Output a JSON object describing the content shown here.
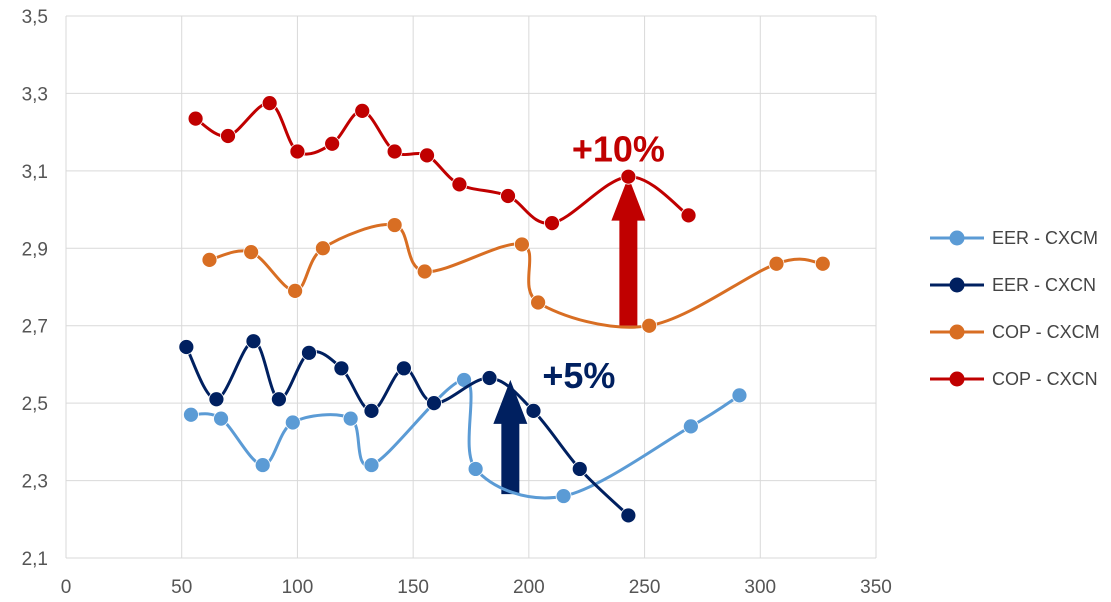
{
  "chart_data": {
    "type": "scatter",
    "xlim": [
      0,
      350
    ],
    "ylim": [
      2.1,
      3.5
    ],
    "x_ticks": [
      0,
      50,
      100,
      150,
      200,
      250,
      300,
      350
    ],
    "y_ticks": [
      2.1,
      2.3,
      2.5,
      2.7,
      2.9,
      3.1,
      3.3,
      3.5
    ],
    "x_tick_labels": [
      "0",
      "50",
      "100",
      "150",
      "200",
      "250",
      "300",
      "350"
    ],
    "y_tick_labels": [
      "2,1",
      "2,3",
      "2,5",
      "2,7",
      "2,9",
      "3,1",
      "3,3",
      "3,5"
    ],
    "grid": true,
    "legend_position": "right",
    "series": [
      {
        "name": "EER - CXCM",
        "color": "#5b9bd5",
        "x": [
          54,
          67,
          85,
          98,
          123,
          132,
          172,
          177,
          215,
          270,
          291
        ],
        "y": [
          2.47,
          2.46,
          2.34,
          2.45,
          2.46,
          2.34,
          2.56,
          2.33,
          2.26,
          2.44,
          2.52
        ]
      },
      {
        "name": "EER - CXCN",
        "color": "#002060",
        "x": [
          52,
          65,
          81,
          92,
          105,
          119,
          132,
          146,
          159,
          183,
          202,
          222,
          243
        ],
        "y": [
          2.645,
          2.51,
          2.66,
          2.51,
          2.63,
          2.59,
          2.48,
          2.59,
          2.5,
          2.565,
          2.48,
          2.33,
          2.21
        ]
      },
      {
        "name": "COP - CXCM",
        "color": "#d86e23",
        "x": [
          62,
          80,
          99,
          111,
          142,
          155,
          197,
          204,
          252,
          307,
          327
        ],
        "y": [
          2.87,
          2.89,
          2.79,
          2.9,
          2.96,
          2.84,
          2.91,
          2.76,
          2.7,
          2.86,
          2.86
        ]
      },
      {
        "name": "COP - CXCN",
        "color": "#c00000",
        "x": [
          56,
          70,
          88,
          100,
          115,
          128,
          142,
          156,
          170,
          191,
          210,
          243,
          269
        ],
        "y": [
          3.235,
          3.19,
          3.275,
          3.15,
          3.17,
          3.255,
          3.15,
          3.14,
          3.065,
          3.035,
          2.965,
          3.085,
          2.985
        ]
      }
    ],
    "annotations": [
      {
        "text": "+10%",
        "color": "#c00000",
        "x": 243,
        "y_from": 2.7,
        "y_to": 3.085
      },
      {
        "text": "+5%",
        "color": "#002060",
        "x": 192,
        "y_from": 2.265,
        "y_to": 2.56
      }
    ]
  }
}
